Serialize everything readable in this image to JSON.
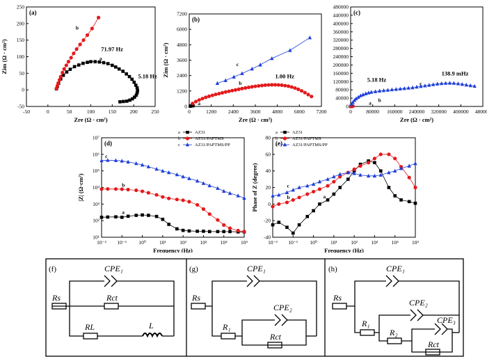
{
  "chart_data": [
    {
      "panel": "(a)",
      "type": "scatter",
      "xlabel": "Zre (Ω · cm²)",
      "ylabel": "Zim (Ω · cm²)",
      "xlim": [
        -50,
        250
      ],
      "ylim": [
        -50,
        250
      ],
      "xticks": [
        "-50",
        "0",
        "50",
        "100",
        "150",
        "200",
        "250"
      ],
      "yticks": [
        "-50",
        "0",
        "50",
        "100",
        "150",
        "200",
        "250"
      ],
      "series": [
        {
          "name": "a",
          "color": "#000000",
          "marker": "square",
          "x": [
            20,
            22,
            25,
            30,
            36,
            44,
            52,
            62,
            72,
            82,
            92,
            100,
            110,
            120,
            130,
            140,
            150,
            158,
            166,
            175,
            183,
            190,
            196,
            201,
            205,
            208,
            209,
            208,
            206,
            202,
            197,
            191,
            184,
            176,
            168
          ],
          "y": [
            3,
            10,
            20,
            33,
            44,
            54,
            62,
            70,
            75,
            80,
            83,
            85,
            85,
            84,
            82,
            79,
            74,
            69,
            63,
            56,
            48,
            40,
            32,
            23,
            14,
            6,
            -2,
            -9,
            -16,
            -22,
            -27,
            -31,
            -34,
            -35,
            -36
          ]
        },
        {
          "name": "b",
          "color": "#e41a1c",
          "marker": "circle",
          "x": [
            20,
            22,
            24,
            27,
            30,
            34,
            38,
            43,
            48,
            54,
            60,
            67,
            75,
            83,
            92,
            103,
            118
          ],
          "y": [
            4,
            12,
            20,
            30,
            40,
            52,
            63,
            74,
            85,
            97,
            110,
            123,
            137,
            150,
            165,
            185,
            218
          ]
        }
      ],
      "annotations": [
        {
          "text": "71.97 Hz",
          "x": 124,
          "y": 117
        },
        {
          "text": "5.18 Hz",
          "x": 210,
          "y": 35
        },
        {
          "text": "a",
          "x": 120,
          "y": 90
        },
        {
          "text": "b",
          "x": 65,
          "y": 182
        }
      ]
    },
    {
      "panel": "(b)",
      "type": "scatter",
      "xlabel": "Zre (Ω · cm²)",
      "ylabel": "Zim (Ω · cm²)",
      "xlim": [
        0,
        8000
      ],
      "ylim": [
        0,
        8000
      ],
      "xticks": [
        "0",
        "1200",
        "2400",
        "3600",
        "4800",
        "6000",
        "7200"
      ],
      "yticks": [
        "0",
        "1200",
        "2400",
        "3600",
        "4800",
        "6000",
        "7200"
      ],
      "series": [
        {
          "name": "a",
          "color": "#000000",
          "marker": "square",
          "x": [
            60,
            120,
            180,
            230
          ],
          "y": [
            20,
            45,
            70,
            60
          ]
        },
        {
          "name": "b",
          "color": "#e41a1c",
          "marker": "circle",
          "x": [
            200,
            400,
            600,
            800,
            1000,
            1200,
            1400,
            1600,
            1800,
            2000,
            2200,
            2400,
            2600,
            2800,
            3000,
            3200,
            3400,
            3600,
            3800,
            4000,
            4200,
            4400,
            4600,
            4800,
            5000,
            5200,
            5400,
            5600,
            5800,
            6000,
            6200,
            6400,
            6600,
            6800,
            7000,
            7200,
            7400
          ],
          "y": [
            260,
            420,
            560,
            680,
            790,
            880,
            960,
            1040,
            1110,
            1180,
            1250,
            1310,
            1370,
            1430,
            1490,
            1550,
            1600,
            1650,
            1700,
            1740,
            1780,
            1810,
            1840,
            1860,
            1870,
            1870,
            1860,
            1840,
            1800,
            1750,
            1680,
            1590,
            1480,
            1350,
            1200,
            1030,
            860
          ]
        },
        {
          "name": "c",
          "color": "#1f3fd8",
          "marker": "triangle",
          "x": [
            1700,
            2200,
            2700,
            3200,
            3800,
            4300,
            5000,
            6100,
            7300
          ],
          "y": [
            2000,
            2250,
            2550,
            2850,
            3250,
            3600,
            4150,
            4850,
            5950
          ]
        }
      ],
      "annotations": [
        {
          "text": "1.00 Hz",
          "x": 5200,
          "y": 2450
        },
        {
          "text": "a",
          "x": 520,
          "y": 130
        },
        {
          "text": "b",
          "x": 3000,
          "y": 1850
        },
        {
          "text": "c",
          "x": 2850,
          "y": 3500
        }
      ]
    },
    {
      "panel": "(c)",
      "type": "scatter",
      "xlabel": "Zre (Ω · cm²)",
      "ylabel": "",
      "xlim": [
        0,
        480000
      ],
      "ylim": [
        0,
        480000
      ],
      "xticks": [
        "0",
        "80000",
        "160000",
        "240000",
        "320000",
        "400000",
        "480000"
      ],
      "yticks": [
        "0",
        "40000",
        "80000",
        "120000",
        "160000",
        "200000",
        "240000",
        "280000",
        "320000",
        "360000",
        "400000",
        "440000",
        "480000"
      ],
      "series": [
        {
          "name": "a",
          "color": "#000000",
          "marker": "square",
          "x": [
            500,
            1000,
            1500,
            2000
          ],
          "y": [
            200,
            400,
            600,
            700
          ]
        },
        {
          "name": "b",
          "color": "#e41a1c",
          "marker": "circle",
          "x": [
            1000,
            2000,
            3500,
            5000,
            7000,
            8500
          ],
          "y": [
            600,
            1200,
            1700,
            2000,
            1800,
            1400
          ]
        },
        {
          "name": "c",
          "color": "#1f3fd8",
          "marker": "triangle",
          "x": [
            3000,
            8000,
            14000,
            20000,
            28000,
            36000,
            45000,
            55000,
            65000,
            75000,
            90000,
            105000,
            120000,
            135000,
            150000,
            165000,
            180000,
            195000,
            210000,
            225000,
            240000,
            255000,
            270000,
            285000,
            300000,
            315000,
            330000,
            345000,
            360000,
            375000,
            390000,
            405000,
            420000,
            435000,
            450000
          ],
          "y": [
            10000,
            20000,
            30000,
            38000,
            45000,
            52000,
            57000,
            62000,
            66000,
            69000,
            72000,
            75000,
            77000,
            79000,
            81000,
            83000,
            85000,
            87000,
            89000,
            91000,
            94000,
            97000,
            100000,
            103000,
            106000,
            109000,
            111000,
            112000,
            113000,
            112000,
            110000,
            107000,
            104000,
            101000,
            98000
          ]
        }
      ],
      "annotations": [
        {
          "text": "5.18 Hz",
          "x": 60000,
          "y": 120000
        },
        {
          "text": "138.9 mHz",
          "x": 330000,
          "y": 150000
        },
        {
          "text": "a",
          "x": 66000,
          "y": 8000
        },
        {
          "text": "b",
          "x": 100000,
          "y": 22000
        },
        {
          "text": "c",
          "x": 250000,
          "y": 103000
        }
      ]
    },
    {
      "panel": "(d)",
      "type": "line",
      "xlabel": "Frequency (Hz)",
      "ylabel": "|Z| (Ω·cm²)",
      "xscale": "log",
      "yscale": "log",
      "xlim": [
        0.01,
        100000
      ],
      "ylim": [
        10,
        10000000
      ],
      "xticks": [
        "10⁻²",
        "10⁻¹",
        "10⁰",
        "10¹",
        "10²",
        "10³",
        "10⁴",
        "10⁵"
      ],
      "yticks": [
        "10¹",
        "10²",
        "10³",
        "10⁴",
        "10⁵",
        "10⁶",
        "10⁷"
      ],
      "legend": {
        "placement": "top-right",
        "entries": [
          {
            "key": "a",
            "label": "AZ31"
          },
          {
            "key": "b",
            "label": "AZ31/PAPTMS"
          },
          {
            "key": "c",
            "label": "AZ31/PAPTMS/PP"
          }
        ]
      },
      "series": [
        {
          "name": "AZ31",
          "color": "#000000",
          "marker": "square",
          "x": [
            0.01,
            0.02,
            0.05,
            0.1,
            0.2,
            0.5,
            1,
            2,
            5,
            10,
            20,
            50,
            100,
            200,
            500,
            1000,
            2000,
            5000,
            10000,
            20000,
            50000,
            100000
          ],
          "y": [
            160,
            165,
            170,
            160,
            185,
            210,
            220,
            210,
            180,
            120,
            60,
            32,
            26,
            24,
            23,
            23,
            22,
            22,
            22,
            22,
            21,
            21
          ]
        },
        {
          "name": "AZ31/PAPTMS",
          "color": "#e41a1c",
          "marker": "circle",
          "x": [
            0.01,
            0.02,
            0.05,
            0.1,
            0.2,
            0.5,
            1,
            2,
            5,
            10,
            20,
            50,
            100,
            200,
            500,
            1000,
            2000,
            5000,
            10000,
            20000,
            50000,
            100000
          ],
          "y": [
            8000,
            8200,
            8100,
            7900,
            7500,
            6800,
            5900,
            4800,
            3600,
            2700,
            2200,
            1900,
            1700,
            1400,
            900,
            500,
            250,
            110,
            55,
            35,
            25,
            22
          ]
        },
        {
          "name": "AZ31/PAPTMS/PP",
          "color": "#1f3fd8",
          "marker": "triangle",
          "x": [
            0.01,
            0.02,
            0.05,
            0.1,
            0.2,
            0.5,
            1,
            2,
            5,
            10,
            20,
            50,
            100,
            200,
            500,
            1000,
            2000,
            5000,
            10000,
            20000,
            50000,
            100000
          ],
          "y": [
            420000,
            440000,
            430000,
            400000,
            350000,
            280000,
            230000,
            180000,
            130000,
            100000,
            80000,
            60000,
            45000,
            35000,
            25000,
            18000,
            13000,
            9000,
            6000,
            4500,
            3200,
            2300
          ]
        }
      ],
      "annotations": [
        {
          "text": "a",
          "x": 0.1,
          "y": 250
        },
        {
          "text": "b",
          "x": 0.1,
          "y": 11000
        },
        {
          "text": "c",
          "x": 0.015,
          "y": 600000
        }
      ]
    },
    {
      "panel": "(e)",
      "type": "line",
      "xlabel": "Frequency (Hz)",
      "ylabel": "Phase of Z (degree)",
      "xscale": "log",
      "xlim": [
        0.01,
        100000
      ],
      "ylim": [
        -40,
        80
      ],
      "xticks": [
        "10⁻²",
        "10⁻¹",
        "10⁰",
        "10¹",
        "10²",
        "10³",
        "10⁴",
        "10⁵"
      ],
      "yticks": [
        "-40",
        "-20",
        "0",
        "20",
        "40",
        "60",
        "80"
      ],
      "legend": {
        "placement": "top-left",
        "entries": [
          {
            "key": "a",
            "label": "AZ31"
          },
          {
            "key": "b",
            "label": "AZ31/PAPTMS"
          },
          {
            "key": "c",
            "label": "AZ31/PAPTMS/PP"
          }
        ]
      },
      "series": [
        {
          "name": "AZ31",
          "color": "#000000",
          "marker": "square",
          "x": [
            0.01,
            0.02,
            0.05,
            0.1,
            0.2,
            0.5,
            1,
            2,
            5,
            10,
            20,
            50,
            100,
            200,
            500,
            1000,
            2000,
            5000,
            10000,
            20000,
            50000,
            100000
          ],
          "y": [
            -25,
            -22,
            -28,
            -35,
            -25,
            -15,
            -8,
            0,
            5,
            12,
            20,
            30,
            40,
            48,
            52,
            50,
            40,
            20,
            10,
            5,
            3,
            1
          ]
        },
        {
          "name": "AZ31/PAPTMS",
          "color": "#e41a1c",
          "marker": "circle",
          "x": [
            0.01,
            0.02,
            0.05,
            0.1,
            0.2,
            0.5,
            1,
            2,
            5,
            10,
            20,
            50,
            100,
            200,
            500,
            1000,
            2000,
            5000,
            10000,
            20000,
            50000,
            100000
          ],
          "y": [
            -3,
            0,
            2,
            5,
            8,
            12,
            15,
            18,
            22,
            27,
            33,
            38,
            42,
            46,
            50,
            55,
            60,
            60,
            55,
            45,
            32,
            20
          ]
        },
        {
          "name": "AZ31/PAPTMS/PP",
          "color": "#1f3fd8",
          "marker": "triangle",
          "x": [
            0.01,
            0.02,
            0.05,
            0.1,
            0.2,
            0.5,
            1,
            2,
            5,
            10,
            20,
            50,
            100,
            200,
            500,
            1000,
            2000,
            5000,
            10000,
            20000,
            50000,
            100000
          ],
          "y": [
            10,
            11,
            14,
            17,
            20,
            22,
            24,
            27,
            30,
            33,
            36,
            38,
            37,
            35,
            34,
            34,
            35,
            38,
            40,
            43,
            46,
            49
          ]
        }
      ],
      "annotations": [
        {
          "text": "a",
          "x": 3,
          "y": 7
        },
        {
          "text": "b",
          "x": 0.05,
          "y": 6
        },
        {
          "text": "c",
          "x": 0.05,
          "y": 20
        }
      ]
    }
  ],
  "circuits": [
    {
      "panel": "(f)",
      "elements": [
        "CPE₁",
        "Rs",
        "Rct",
        "RL",
        "L"
      ]
    },
    {
      "panel": "(g)",
      "elements": [
        "CPE₁",
        "Rs",
        "CPE₂",
        "R₁",
        "Rct"
      ]
    },
    {
      "panel": "(h)",
      "elements": [
        "CPE₁",
        "Rs",
        "CPE₂",
        "R₁",
        "CPE₃",
        "R₂",
        "Rct"
      ]
    }
  ]
}
